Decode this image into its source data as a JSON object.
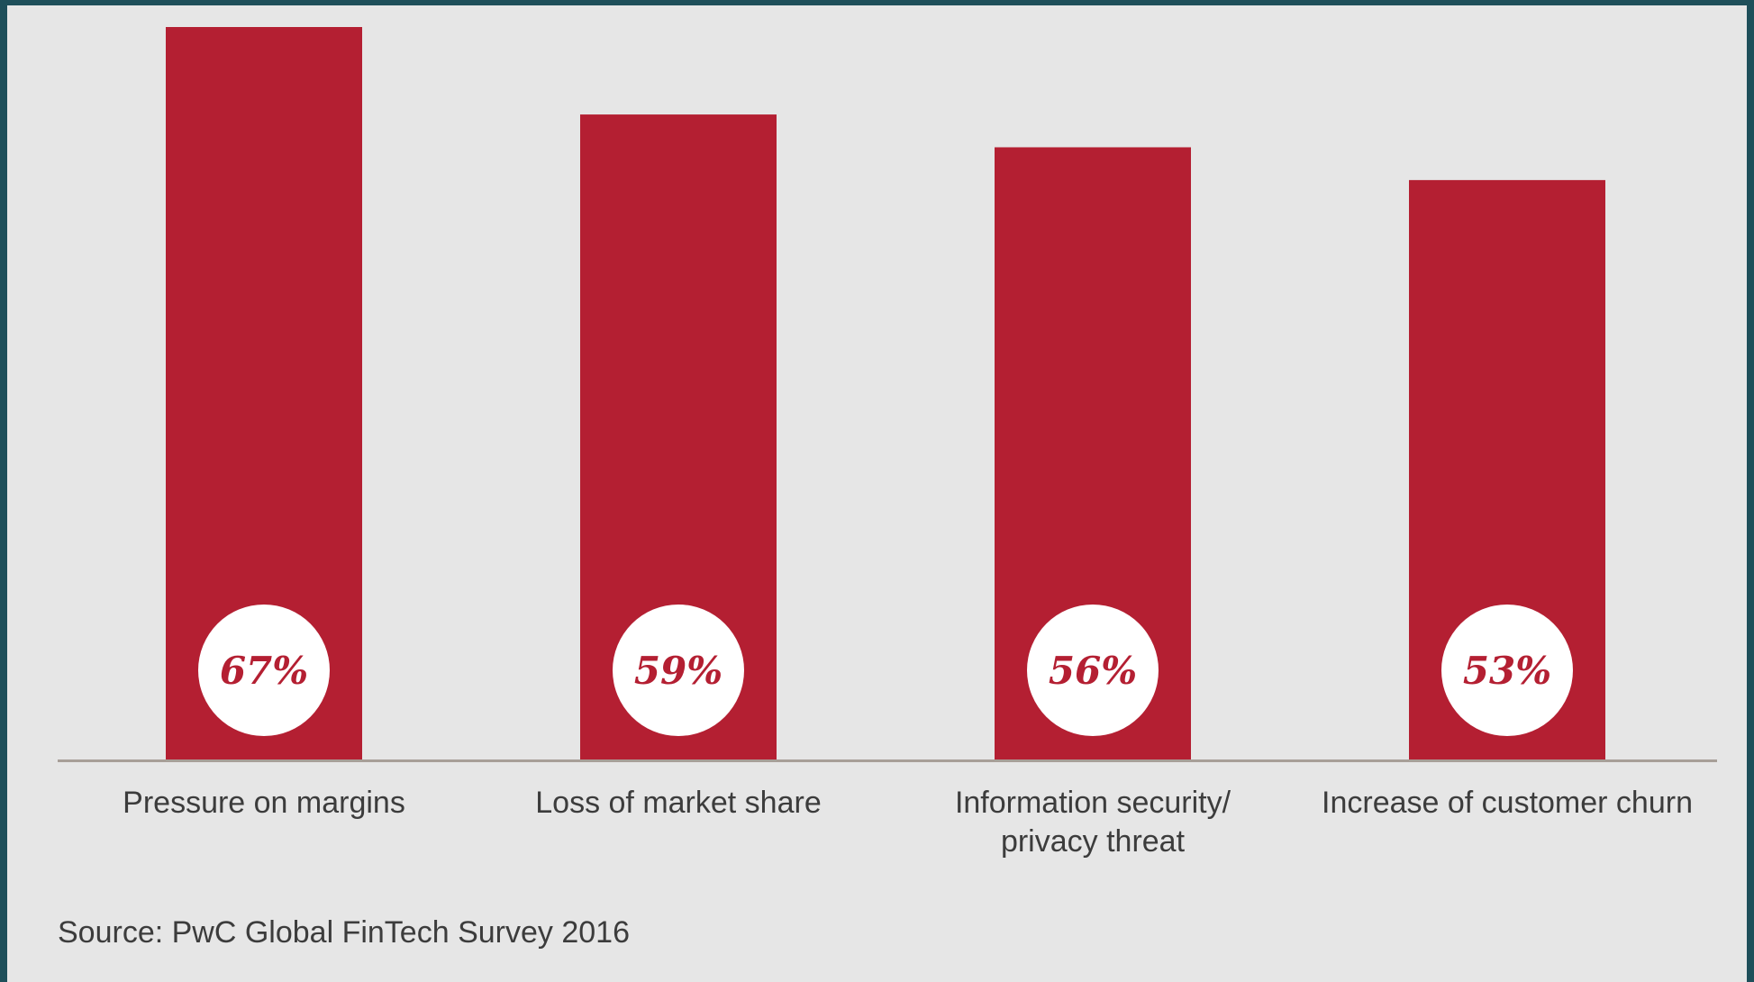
{
  "chart_data": {
    "type": "bar",
    "categories": [
      "Pressure on margins",
      "Loss of market share",
      "Information security/ privacy threat",
      "Increase of customer churn"
    ],
    "category_lines": [
      [
        "Pressure on margins"
      ],
      [
        "Loss of market share"
      ],
      [
        "Information security/",
        "privacy threat"
      ],
      [
        "Increase of customer churn"
      ]
    ],
    "values": [
      67,
      59,
      56,
      53
    ],
    "value_labels": [
      "67%",
      "59%",
      "56%",
      "53%"
    ],
    "ylim": [
      0,
      67
    ],
    "grid": false,
    "colors": {
      "bar": "#b41f32",
      "badge": "#ffffff",
      "value_text": "#b41f32",
      "baseline": "#a89f98"
    }
  },
  "source": "Source: PwC Global FinTech Survey 2016"
}
